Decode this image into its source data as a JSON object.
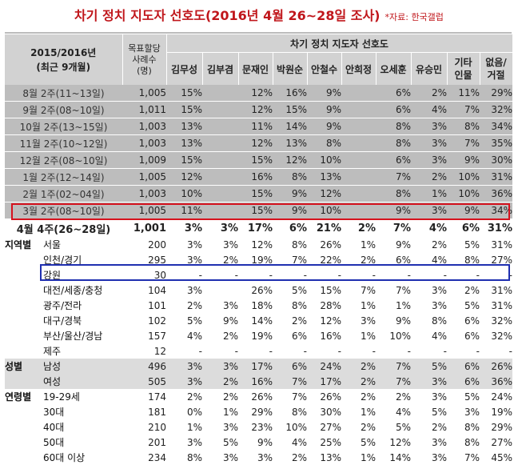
{
  "title": {
    "main": "차기 정치 지도자 선호도(2016년 4월 26~28일 조사)",
    "source": "*자료: 한국갤럽"
  },
  "header": {
    "period_line1": "2015/2016년",
    "period_line2": "(최근 9개월)",
    "sample_line1": "목표할당",
    "sample_line2": "사례수",
    "sample_line3": "(명)",
    "group_title": "차기 정치 지도자 선호도",
    "candidates": [
      "김무성",
      "김부겸",
      "문재인",
      "박원순",
      "안철수",
      "안희정",
      "오세훈",
      "유승민"
    ],
    "other_line1": "기타",
    "other_line2": "인물",
    "none_line1": "없음/",
    "none_line2": "거절"
  },
  "past_rows": [
    {
      "label": "8월 2주(11~13일)",
      "n": "1,005",
      "v": [
        "15%",
        "",
        "12%",
        "16%",
        "9%",
        "",
        "6%",
        "2%",
        "11%",
        "29%"
      ]
    },
    {
      "label": "9월 2주(08~10일)",
      "n": "1,011",
      "v": [
        "15%",
        "",
        "12%",
        "15%",
        "9%",
        "",
        "6%",
        "4%",
        "7%",
        "32%"
      ]
    },
    {
      "label": "10월 2주(13~15일)",
      "n": "1,003",
      "v": [
        "13%",
        "",
        "11%",
        "14%",
        "9%",
        "",
        "8%",
        "3%",
        "8%",
        "34%"
      ]
    },
    {
      "label": "11월 2주(10~12일)",
      "n": "1,003",
      "v": [
        "13%",
        "",
        "12%",
        "13%",
        "8%",
        "",
        "8%",
        "3%",
        "7%",
        "35%"
      ]
    },
    {
      "label": "12월 2주(08~10일)",
      "n": "1,009",
      "v": [
        "15%",
        "",
        "15%",
        "12%",
        "10%",
        "",
        "6%",
        "3%",
        "9%",
        "30%"
      ]
    },
    {
      "label": "1월 2주(12~14일)",
      "n": "1,005",
      "v": [
        "12%",
        "",
        "16%",
        "8%",
        "13%",
        "",
        "7%",
        "2%",
        "10%",
        "31%"
      ]
    },
    {
      "label": "2월 1주(02~04일)",
      "n": "1,003",
      "v": [
        "10%",
        "",
        "15%",
        "9%",
        "12%",
        "",
        "8%",
        "1%",
        "10%",
        "36%"
      ]
    },
    {
      "label": "3월 2주(08~10일)",
      "n": "1,005",
      "v": [
        "11%",
        "",
        "15%",
        "9%",
        "10%",
        "",
        "9%",
        "3%",
        "9%",
        "34%"
      ]
    }
  ],
  "current_row": {
    "label": "4월 4주(26~28일)",
    "n": "1,001",
    "v": [
      "3%",
      "3%",
      "17%",
      "6%",
      "21%",
      "2%",
      "7%",
      "4%",
      "6%",
      "31%"
    ]
  },
  "region_group": "지역별",
  "gender_group": "성별",
  "age_group": "연령별",
  "sub_rows": [
    {
      "group": "region",
      "label": "서울",
      "n": "200",
      "v": [
        "3%",
        "3%",
        "12%",
        "8%",
        "26%",
        "1%",
        "9%",
        "2%",
        "5%",
        "31%"
      ]
    },
    {
      "group": "",
      "label": "인천/경기",
      "n": "295",
      "v": [
        "3%",
        "2%",
        "19%",
        "7%",
        "22%",
        "2%",
        "6%",
        "4%",
        "8%",
        "27%"
      ]
    },
    {
      "group": "",
      "label": "강원",
      "n": "30",
      "v": [
        "-",
        "-",
        "-",
        "-",
        "-",
        "-",
        "-",
        "-",
        "-",
        "-"
      ]
    },
    {
      "group": "",
      "label": "대전/세종/충청",
      "n": "104",
      "v": [
        "3%",
        "",
        "26%",
        "5%",
        "15%",
        "7%",
        "7%",
        "3%",
        "2%",
        "31%"
      ]
    },
    {
      "group": "",
      "label": "광주/전라",
      "n": "101",
      "v": [
        "2%",
        "3%",
        "18%",
        "8%",
        "28%",
        "1%",
        "1%",
        "3%",
        "5%",
        "31%"
      ]
    },
    {
      "group": "",
      "label": "대구/경북",
      "n": "102",
      "v": [
        "5%",
        "9%",
        "14%",
        "2%",
        "12%",
        "3%",
        "9%",
        "8%",
        "6%",
        "32%"
      ]
    },
    {
      "group": "",
      "label": "부산/울산/경남",
      "n": "157",
      "v": [
        "4%",
        "2%",
        "19%",
        "6%",
        "16%",
        "1%",
        "10%",
        "4%",
        "6%",
        "32%"
      ]
    },
    {
      "group": "",
      "label": "제주",
      "n": "12",
      "v": [
        "-",
        "-",
        "-",
        "-",
        "-",
        "-",
        "-",
        "-",
        "-",
        "-"
      ]
    },
    {
      "group": "gender",
      "label": "남성",
      "n": "496",
      "v": [
        "3%",
        "3%",
        "17%",
        "6%",
        "24%",
        "2%",
        "7%",
        "5%",
        "6%",
        "26%"
      ]
    },
    {
      "group": "",
      "label": "여성",
      "n": "505",
      "v": [
        "3%",
        "2%",
        "16%",
        "7%",
        "17%",
        "2%",
        "7%",
        "3%",
        "6%",
        "36%"
      ]
    },
    {
      "group": "age",
      "label": "19-29세",
      "n": "174",
      "v": [
        "2%",
        "2%",
        "26%",
        "7%",
        "26%",
        "2%",
        "2%",
        "3%",
        "5%",
        "24%"
      ]
    },
    {
      "group": "",
      "label": "30대",
      "n": "181",
      "v": [
        "0%",
        "1%",
        "29%",
        "8%",
        "30%",
        "1%",
        "4%",
        "5%",
        "3%",
        "19%"
      ]
    },
    {
      "group": "",
      "label": "40대",
      "n": "210",
      "v": [
        "1%",
        "3%",
        "23%",
        "10%",
        "27%",
        "2%",
        "5%",
        "2%",
        "8%",
        "29%"
      ]
    },
    {
      "group": "",
      "label": "50대",
      "n": "201",
      "v": [
        "3%",
        "5%",
        "9%",
        "4%",
        "25%",
        "5%",
        "12%",
        "3%",
        "8%",
        "27%"
      ]
    },
    {
      "group": "",
      "label": "60대 이상",
      "n": "234",
      "v": [
        "8%",
        "3%",
        "3%",
        "2%",
        "13%",
        "1%",
        "14%",
        "3%",
        "7%",
        "45%"
      ]
    }
  ],
  "colors": {
    "title_red": "#c0161b",
    "highlight_red": "#d6121e",
    "highlight_blue": "#1f2fb0",
    "header_gray": "#d2d2d2",
    "row_gray": "#bdbdbd"
  }
}
